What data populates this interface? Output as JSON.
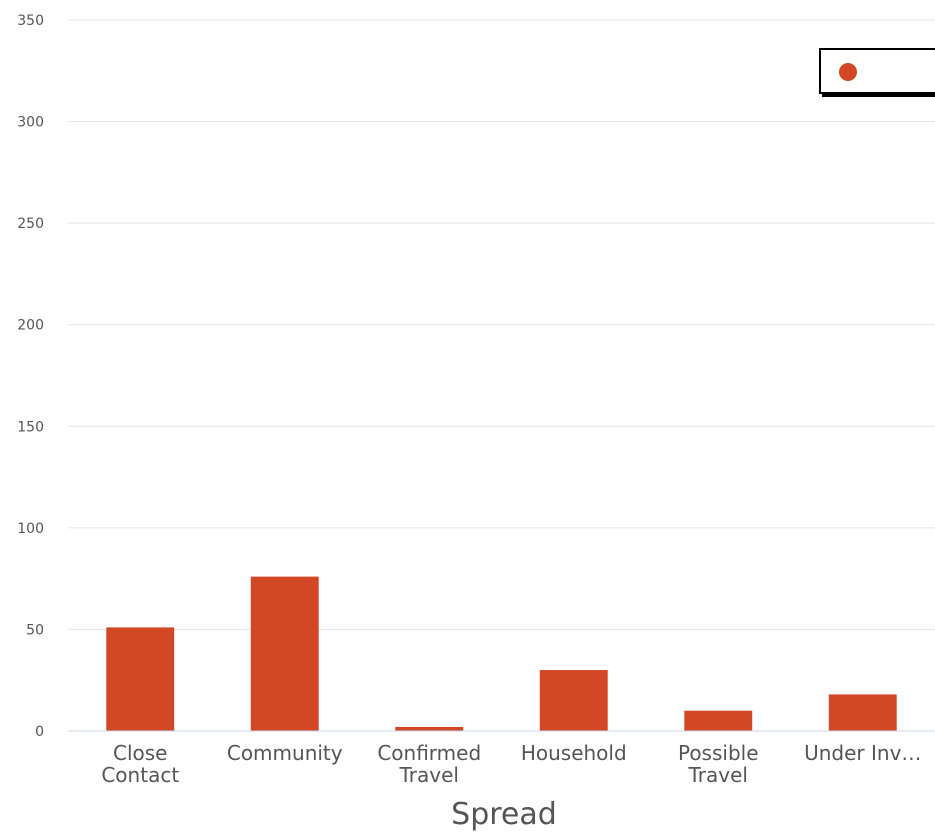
{
  "chart_data": {
    "type": "bar",
    "categories": [
      "Close\nContact",
      "Community",
      "Confirmed\nTravel",
      "Household",
      "Possible\nTravel",
      "Under Inv…"
    ],
    "values": [
      51,
      76,
      2,
      30,
      10,
      18
    ],
    "xlabel": "Spread",
    "ylabel": "",
    "ylim": [
      0,
      350
    ],
    "yticks": [
      0,
      50,
      100,
      150,
      200,
      250,
      300,
      350
    ],
    "grid": true,
    "legend": "top-right",
    "colors": {
      "bar": "#d24726",
      "grid": "#e6e6e6",
      "axis": "#ccd6eb",
      "text": "#555555"
    },
    "series": [
      {
        "name": "",
        "values": [
          51,
          76,
          2,
          30,
          10,
          18
        ]
      }
    ]
  }
}
